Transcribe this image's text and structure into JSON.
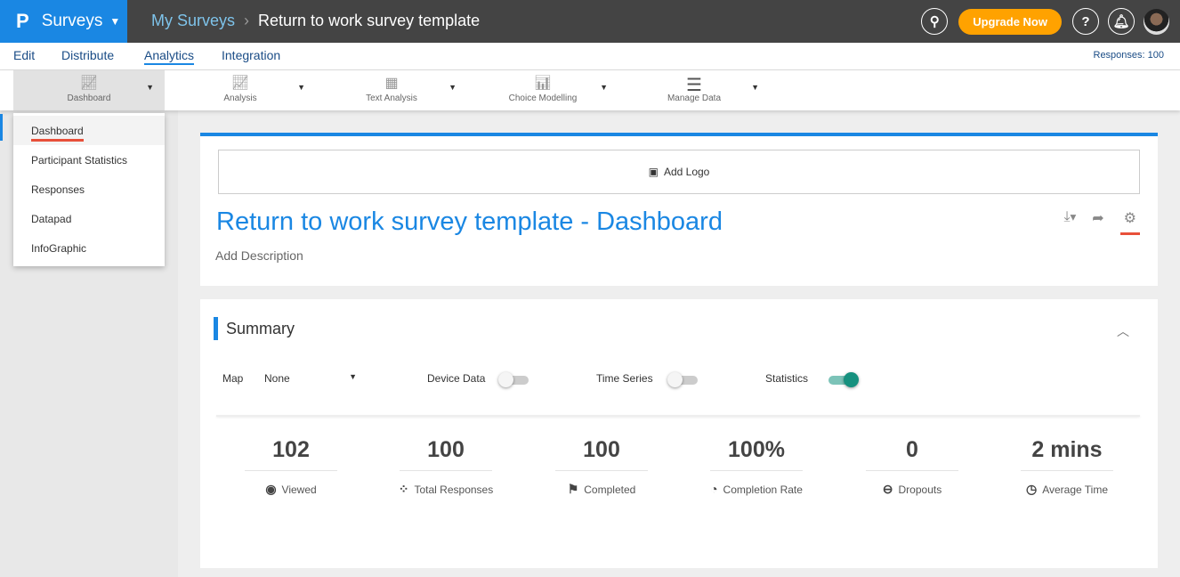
{
  "topbar": {
    "logo": "P",
    "app": "Surveys",
    "breadcrumb_root": "My Surveys",
    "breadcrumb_current": "Return to work survey template",
    "upgrade": "Upgrade Now"
  },
  "tabs": [
    {
      "label": "Edit"
    },
    {
      "label": "Distribute"
    },
    {
      "label": "Analytics",
      "active": true
    },
    {
      "label": "Integration"
    }
  ],
  "responses": "Responses: 100",
  "toolbar": [
    {
      "label": "Dashboard",
      "icon": "line-chart-icon"
    },
    {
      "label": "Analysis",
      "icon": "multi-line-chart-icon"
    },
    {
      "label": "Text Analysis",
      "icon": "document-grid-icon"
    },
    {
      "label": "Choice Modelling",
      "icon": "scatter-bar-icon"
    },
    {
      "label": "Manage Data",
      "icon": "database-icon"
    }
  ],
  "menu": [
    {
      "label": "Dashboard"
    },
    {
      "label": "Participant Statistics"
    },
    {
      "label": "Responses"
    },
    {
      "label": "Datapad"
    },
    {
      "label": "InfoGraphic"
    }
  ],
  "dashboard": {
    "add_logo": "Add Logo",
    "title": "Return to work survey template - Dashboard",
    "description": "Add Description"
  },
  "summary": {
    "title": "Summary",
    "map_label": "Map",
    "map_value": "None",
    "device_data": "Device Data",
    "device_data_on": false,
    "time_series": "Time Series",
    "time_series_on": false,
    "statistics": "Statistics",
    "statistics_on": true,
    "stats": [
      {
        "value": "102",
        "label": "Viewed",
        "icon": "eye-icon"
      },
      {
        "value": "100",
        "label": "Total Responses",
        "icon": "dots-icon"
      },
      {
        "value": "100",
        "label": "Completed",
        "icon": "flag-icon"
      },
      {
        "value": "100%",
        "label": "Completion Rate",
        "icon": "pie-icon"
      },
      {
        "value": "0",
        "label": "Dropouts",
        "icon": "minus-circle-icon"
      },
      {
        "value": "2 mins",
        "label": "Average Time",
        "icon": "clock-icon"
      }
    ]
  },
  "colors": {
    "brand": "#1a87e3",
    "upgrade": "#ffa200",
    "topbar": "#444444",
    "toggle_on": "#16917f",
    "highlight": "#e8503a"
  }
}
